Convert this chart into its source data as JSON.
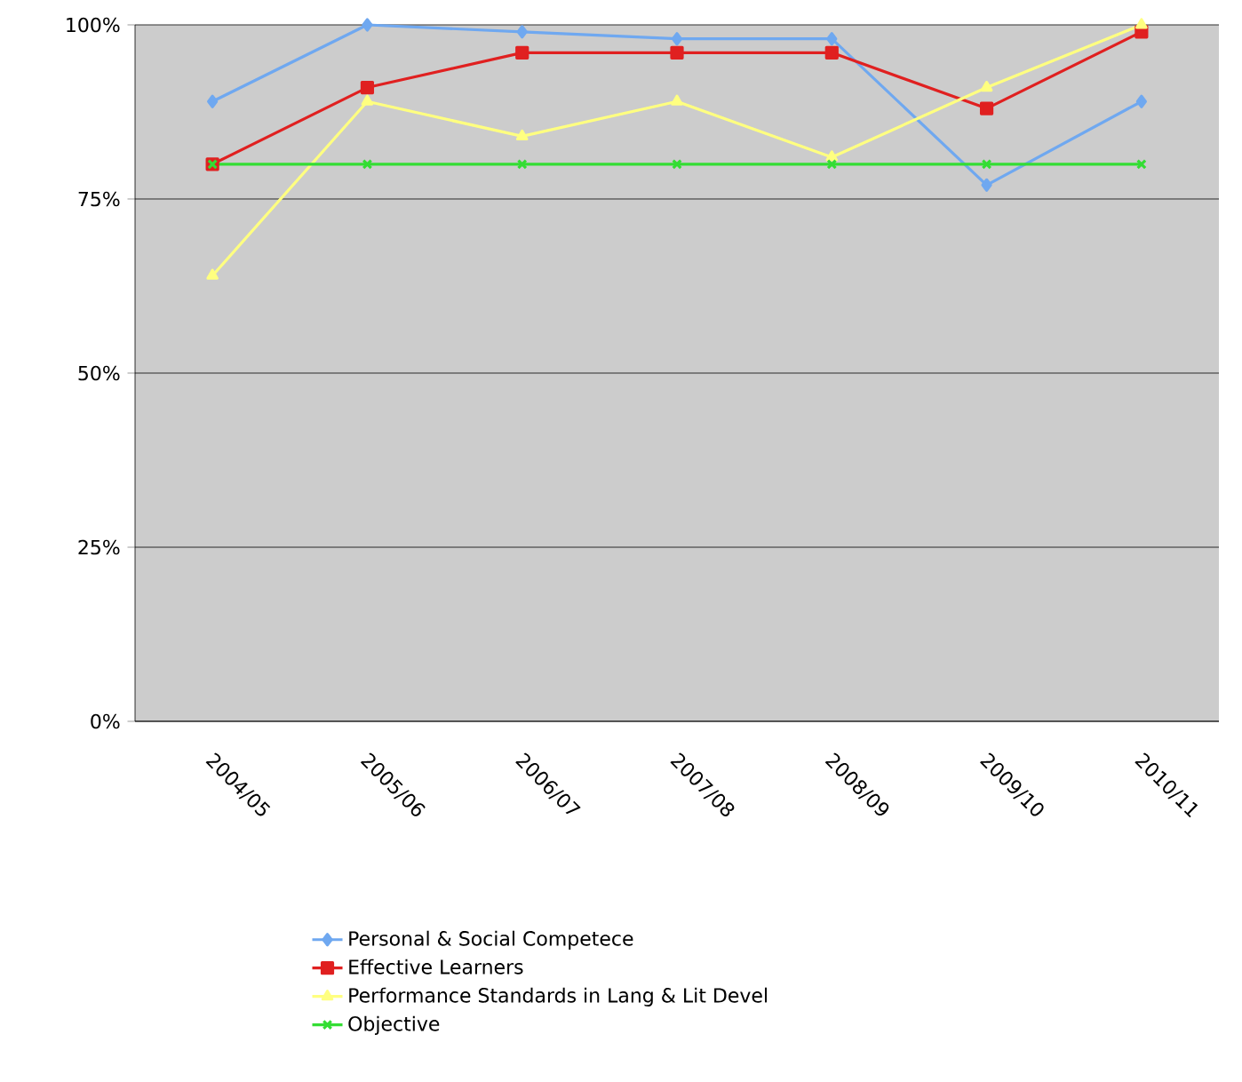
{
  "chart_data": {
    "type": "line",
    "categories": [
      "2004/05",
      "2005/06",
      "2006/07",
      "2007/08",
      "2008/09",
      "2009/10",
      "2010/11"
    ],
    "series": [
      {
        "name": "Personal & Social Competece",
        "color": "#6fa8f0",
        "marker": "diamond",
        "values": [
          89,
          100,
          99,
          98,
          98,
          77,
          89
        ]
      },
      {
        "name": "Effective Learners",
        "color": "#e02020",
        "marker": "square",
        "values": [
          80,
          91,
          96,
          96,
          96,
          88,
          99
        ]
      },
      {
        "name": "Performance Standards in Lang & Lit Devel",
        "color": "#ffff80",
        "marker": "triangle",
        "values": [
          64,
          89,
          84,
          89,
          81,
          91,
          100
        ]
      },
      {
        "name": "Objective",
        "color": "#33dd33",
        "marker": "cross",
        "values": [
          80,
          80,
          80,
          80,
          80,
          80,
          80
        ]
      }
    ],
    "ylim": [
      0,
      100
    ],
    "yticks": [
      {
        "value": 0,
        "label": "0%"
      },
      {
        "value": 25,
        "label": "25%"
      },
      {
        "value": 50,
        "label": "50%"
      },
      {
        "value": 75,
        "label": "75%"
      },
      {
        "value": 100,
        "label": "100%"
      }
    ],
    "grid": "y",
    "legend": "bottom",
    "line_style": "solid"
  }
}
